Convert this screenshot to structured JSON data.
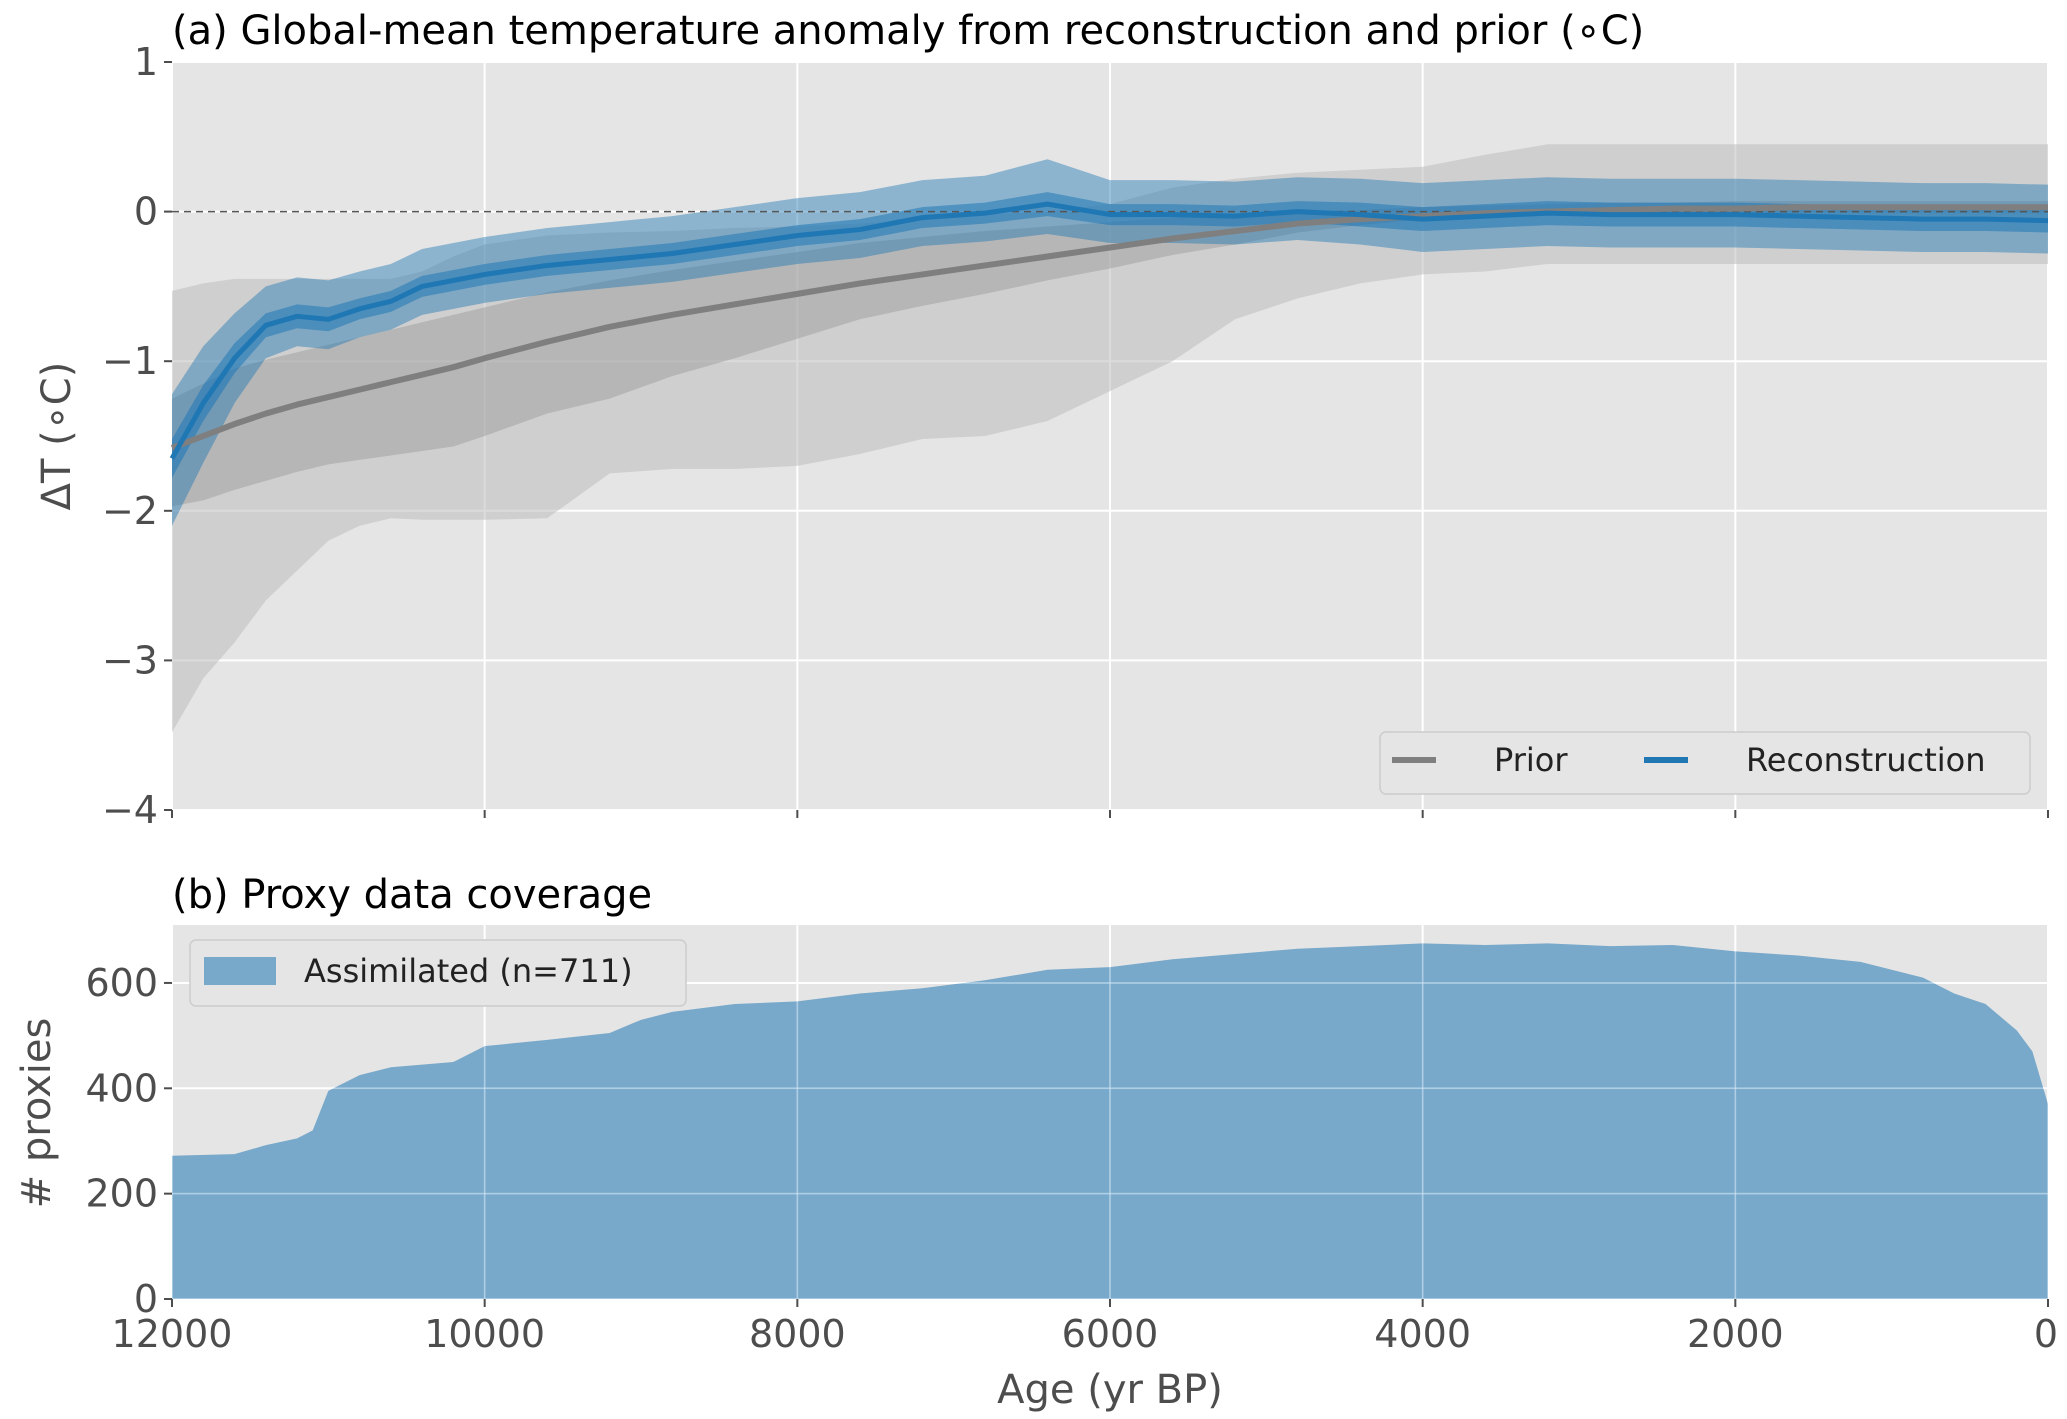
{
  "chart_data": [
    {
      "type": "area",
      "title": "(a) Global-mean temperature anomaly from reconstruction and prior (∘C)",
      "xlabel": "",
      "ylabel": "ΔT (∘C)",
      "xlim": [
        12000,
        0
      ],
      "ylim": [
        -4,
        1
      ],
      "x_ticks": [
        12000,
        10000,
        8000,
        6000,
        4000,
        2000,
        0
      ],
      "y_ticks": [
        -4,
        -3,
        -2,
        -1,
        0,
        1
      ],
      "y_tick_labels": [
        "−4",
        "−3",
        "−2",
        "−1",
        "0",
        "1"
      ],
      "grid": true,
      "zero_line": 0,
      "legend": {
        "location": "lower-right",
        "entries": [
          "Prior",
          "Reconstruction"
        ]
      },
      "x": [
        12000,
        11800,
        11600,
        11400,
        11200,
        11000,
        10800,
        10600,
        10400,
        10200,
        10000,
        9600,
        9200,
        8800,
        8400,
        8000,
        7600,
        7200,
        6800,
        6400,
        6000,
        5600,
        5200,
        4800,
        4400,
        4000,
        3600,
        3200,
        2800,
        2400,
        2000,
        1600,
        1200,
        800,
        400,
        0
      ],
      "series": [
        {
          "name": "Prior",
          "color": "#7f7f7f",
          "values": [
            -1.58,
            -1.5,
            -1.42,
            -1.35,
            -1.29,
            -1.24,
            -1.19,
            -1.14,
            -1.09,
            -1.04,
            -0.98,
            -0.87,
            -0.77,
            -0.69,
            -0.62,
            -0.55,
            -0.48,
            -0.42,
            -0.36,
            -0.3,
            -0.24,
            -0.18,
            -0.13,
            -0.08,
            -0.05,
            -0.03,
            -0.01,
            0.0,
            0.01,
            0.02,
            0.02,
            0.03,
            0.03,
            0.03,
            0.03,
            0.03
          ],
          "inner_lower": [
            -1.97,
            -1.93,
            -1.86,
            -1.8,
            -1.74,
            -1.69,
            -1.66,
            -1.63,
            -1.6,
            -1.57,
            -1.5,
            -1.35,
            -1.25,
            -1.1,
            -0.98,
            -0.85,
            -0.72,
            -0.63,
            -0.55,
            -0.46,
            -0.38,
            -0.29,
            -0.22,
            -0.14,
            -0.09,
            -0.05,
            -0.03,
            -0.02,
            -0.02,
            -0.02,
            -0.02,
            -0.01,
            -0.01,
            -0.01,
            -0.01,
            -0.01
          ],
          "inner_upper": [
            -1.25,
            -1.15,
            -1.05,
            -0.99,
            -0.94,
            -0.89,
            -0.84,
            -0.79,
            -0.74,
            -0.69,
            -0.64,
            -0.54,
            -0.46,
            -0.39,
            -0.33,
            -0.27,
            -0.21,
            -0.17,
            -0.13,
            -0.1,
            -0.07,
            -0.04,
            -0.02,
            0.0,
            0.01,
            0.03,
            0.04,
            0.05,
            0.06,
            0.06,
            0.07,
            0.07,
            0.07,
            0.07,
            0.07,
            0.07
          ],
          "outer_lower": [
            -3.48,
            -3.12,
            -2.88,
            -2.6,
            -2.4,
            -2.2,
            -2.1,
            -2.05,
            -2.06,
            -2.06,
            -2.06,
            -2.05,
            -1.75,
            -1.72,
            -1.72,
            -1.7,
            -1.62,
            -1.52,
            -1.5,
            -1.4,
            -1.2,
            -1.0,
            -0.72,
            -0.58,
            -0.48,
            -0.42,
            -0.4,
            -0.35,
            -0.35,
            -0.35,
            -0.35,
            -0.35,
            -0.35,
            -0.35,
            -0.35,
            -0.35
          ],
          "outer_upper": [
            -0.53,
            -0.48,
            -0.45,
            -0.45,
            -0.45,
            -0.45,
            -0.45,
            -0.45,
            -0.4,
            -0.3,
            -0.22,
            -0.16,
            -0.14,
            -0.13,
            -0.11,
            -0.1,
            -0.08,
            -0.05,
            -0.02,
            0.0,
            0.05,
            0.16,
            0.22,
            0.26,
            0.28,
            0.3,
            0.38,
            0.45,
            0.45,
            0.45,
            0.45,
            0.45,
            0.45,
            0.45,
            0.45,
            0.45
          ]
        },
        {
          "name": "Reconstruction",
          "color": "#1f77b4",
          "values": [
            -1.65,
            -1.28,
            -0.98,
            -0.76,
            -0.7,
            -0.72,
            -0.65,
            -0.6,
            -0.5,
            -0.46,
            -0.42,
            -0.36,
            -0.32,
            -0.28,
            -0.22,
            -0.16,
            -0.12,
            -0.04,
            -0.01,
            0.05,
            -0.02,
            -0.02,
            -0.03,
            0.0,
            -0.02,
            -0.05,
            -0.03,
            -0.01,
            -0.02,
            -0.02,
            -0.02,
            -0.03,
            -0.04,
            -0.05,
            -0.05,
            -0.06
          ],
          "inner_lower": [
            -1.78,
            -1.4,
            -1.08,
            -0.84,
            -0.78,
            -0.8,
            -0.72,
            -0.67,
            -0.57,
            -0.53,
            -0.49,
            -0.43,
            -0.39,
            -0.35,
            -0.29,
            -0.23,
            -0.19,
            -0.11,
            -0.08,
            -0.03,
            -0.09,
            -0.09,
            -0.1,
            -0.07,
            -0.1,
            -0.13,
            -0.11,
            -0.09,
            -0.1,
            -0.1,
            -0.1,
            -0.11,
            -0.12,
            -0.13,
            -0.13,
            -0.14
          ],
          "inner_upper": [
            -1.52,
            -1.16,
            -0.88,
            -0.68,
            -0.62,
            -0.64,
            -0.58,
            -0.53,
            -0.43,
            -0.39,
            -0.35,
            -0.29,
            -0.25,
            -0.21,
            -0.15,
            -0.09,
            -0.05,
            0.03,
            0.06,
            0.13,
            0.05,
            0.05,
            0.04,
            0.07,
            0.06,
            0.03,
            0.05,
            0.07,
            0.06,
            0.06,
            0.06,
            0.05,
            0.04,
            0.03,
            0.03,
            0.02
          ],
          "outer_lower": [
            -2.1,
            -1.68,
            -1.28,
            -0.98,
            -0.9,
            -0.92,
            -0.84,
            -0.79,
            -0.69,
            -0.65,
            -0.61,
            -0.55,
            -0.51,
            -0.47,
            -0.41,
            -0.35,
            -0.31,
            -0.23,
            -0.2,
            -0.15,
            -0.21,
            -0.21,
            -0.22,
            -0.19,
            -0.22,
            -0.27,
            -0.25,
            -0.23,
            -0.24,
            -0.24,
            -0.24,
            -0.25,
            -0.26,
            -0.27,
            -0.27,
            -0.28
          ],
          "outer_upper": [
            -1.22,
            -0.9,
            -0.68,
            -0.5,
            -0.44,
            -0.46,
            -0.4,
            -0.35,
            -0.25,
            -0.21,
            -0.17,
            -0.11,
            -0.07,
            -0.03,
            0.03,
            0.09,
            0.13,
            0.21,
            0.24,
            0.35,
            0.21,
            0.21,
            0.2,
            0.23,
            0.22,
            0.19,
            0.21,
            0.23,
            0.22,
            0.22,
            0.22,
            0.21,
            0.2,
            0.19,
            0.19,
            0.18
          ]
        }
      ]
    },
    {
      "type": "area",
      "title": "(b) Proxy data coverage",
      "xlabel": "Age (yr BP)",
      "ylabel": "# proxies",
      "xlim": [
        12000,
        0
      ],
      "ylim": [
        0,
        710
      ],
      "x_ticks": [
        12000,
        10000,
        8000,
        6000,
        4000,
        2000,
        0
      ],
      "y_ticks": [
        0,
        200,
        400,
        600
      ],
      "grid": true,
      "legend": {
        "location": "top-left",
        "entries": [
          "Assimilated (n=711)"
        ]
      },
      "x": [
        12000,
        11600,
        11400,
        11200,
        11100,
        11000,
        10800,
        10600,
        10400,
        10200,
        10000,
        9600,
        9200,
        9000,
        8800,
        8400,
        8000,
        7600,
        7200,
        6800,
        6400,
        6000,
        5600,
        5200,
        4800,
        4400,
        4000,
        3600,
        3200,
        2800,
        2400,
        2000,
        1600,
        1200,
        800,
        600,
        400,
        200,
        100,
        0
      ],
      "series": [
        {
          "name": "Assimilated (n=711)",
          "color": "#1f77b4",
          "values": [
            272,
            275,
            292,
            305,
            320,
            395,
            425,
            440,
            445,
            450,
            480,
            492,
            505,
            530,
            545,
            560,
            565,
            580,
            590,
            605,
            625,
            630,
            645,
            655,
            665,
            670,
            675,
            672,
            675,
            670,
            672,
            660,
            652,
            640,
            610,
            580,
            560,
            510,
            470,
            370
          ]
        }
      ]
    }
  ]
}
